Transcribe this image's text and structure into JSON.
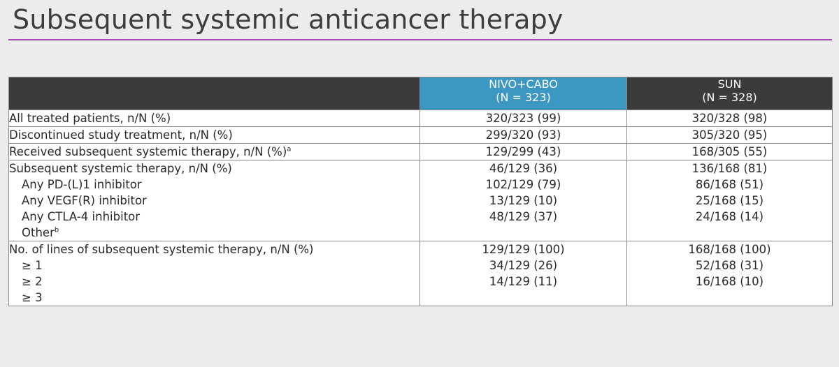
{
  "title": "Subsequent systemic anticancer therapy",
  "header": {
    "col1": "",
    "col2_line1": "NIVO+CABO",
    "col2_line2": "(N = 323)",
    "col3_line1": "SUN",
    "col3_line2": "(N = 328)"
  },
  "rows": [
    {
      "label": "All treated patients, n/N (%)",
      "nivo": "320/323 (99)",
      "sun": "320/328 (98)"
    },
    {
      "label": "Discontinued study treatment, n/N (%)",
      "nivo": "299/320 (93)",
      "sun": "305/320 (95)"
    },
    {
      "label": "Received subsequent systemic therapy, n/N (%)",
      "label_sup": "a",
      "nivo": "129/299 (43)",
      "sun": "168/305 (55)"
    }
  ],
  "block1": {
    "heading": "Subsequent systemic therapy, n/N (%)",
    "items": [
      {
        "label": "Any PD-(L)1 inhibitor",
        "nivo": "46/129 (36)",
        "sun": "136/168 (81)"
      },
      {
        "label": "Any VEGF(R) inhibitor",
        "nivo": "102/129 (79)",
        "sun": "86/168 (51)"
      },
      {
        "label": "Any CTLA-4 inhibitor",
        "nivo": "13/129 (10)",
        "sun": "25/168 (15)"
      },
      {
        "label": "Other",
        "label_sup": "b",
        "nivo": "48/129 (37)",
        "sun": "24/168 (14)"
      }
    ]
  },
  "block2": {
    "heading": "No. of lines of subsequent systemic therapy, n/N (%)",
    "items": [
      {
        "label": "≥ 1",
        "nivo": "129/129 (100)",
        "sun": "168/168 (100)"
      },
      {
        "label": "≥ 2",
        "nivo": "34/129 (26)",
        "sun": "52/168 (31)"
      },
      {
        "label": "≥ 3",
        "nivo": "14/129 (11)",
        "sun": "16/168 (10)"
      }
    ]
  }
}
